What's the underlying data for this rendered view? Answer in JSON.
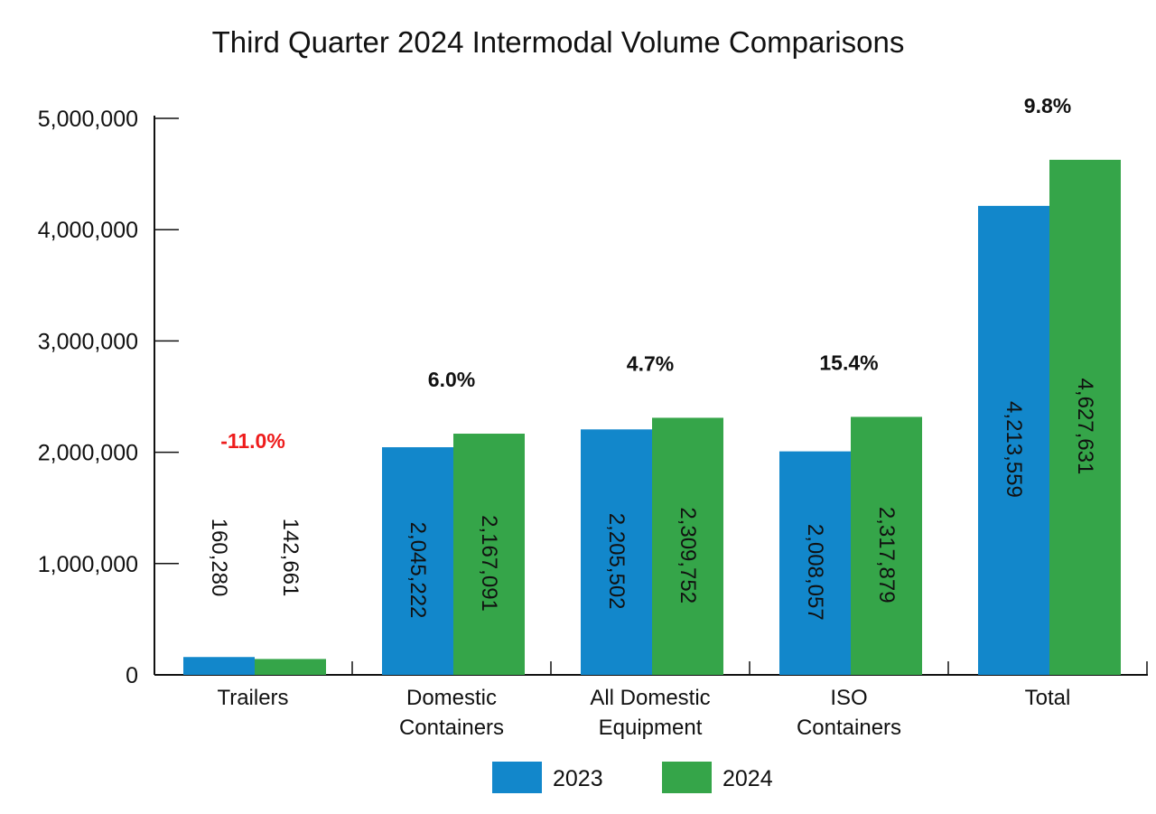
{
  "chart_data": {
    "type": "bar",
    "title": "Third Quarter 2024 Intermodal Volume Comparisons",
    "xlabel": "",
    "ylabel": "",
    "ylim": [
      0,
      5000000
    ],
    "yticks": [
      "0",
      "1,000,000",
      "2,000,000",
      "3,000,000",
      "4,000,000",
      "5,000,000"
    ],
    "ytick_values": [
      0,
      1000000,
      2000000,
      3000000,
      4000000,
      5000000
    ],
    "categories": [
      [
        "Trailers"
      ],
      [
        "Domestic",
        "Containers"
      ],
      [
        "All Domestic",
        "Equipment"
      ],
      [
        "ISO",
        "Containers"
      ],
      [
        "Total"
      ]
    ],
    "series": [
      {
        "name": "2023",
        "color": "#1287cb",
        "values": [
          160280,
          2045222,
          2205502,
          2008057,
          4213559
        ],
        "labels": [
          "160,280",
          "2,045,222",
          "2,205,502",
          "2,008,057",
          "4,213,559"
        ]
      },
      {
        "name": "2024",
        "color": "#35a549",
        "values": [
          142661,
          2167091,
          2309752,
          2317879,
          4627631
        ],
        "labels": [
          "142,661",
          "2,167,091",
          "2,309,752",
          "2,317,879",
          "4,627,631"
        ]
      }
    ],
    "annotations": [
      "-11.0%",
      "6.0%",
      "4.7%",
      "15.4%",
      "9.8%"
    ],
    "annotation_colors": [
      "#ee1c1c",
      "#111111",
      "#111111",
      "#111111",
      "#111111"
    ],
    "legend_position": "bottom",
    "grid": false
  }
}
